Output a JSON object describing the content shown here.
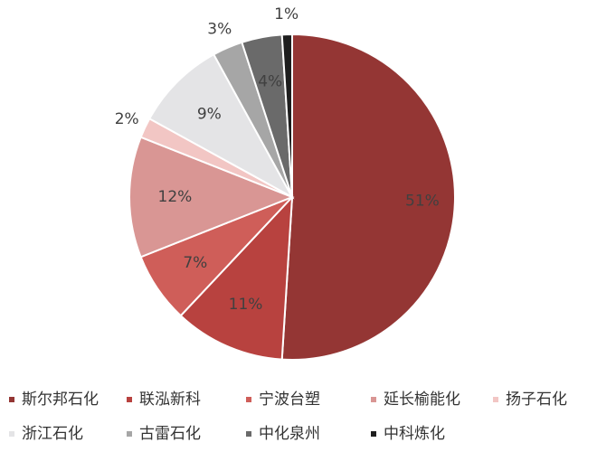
{
  "chart_data": {
    "type": "pie",
    "categories": [
      "斯尔邦石化",
      "联泓新科",
      "宁波台塑",
      "延长榆能化",
      "扬子石化",
      "浙江石化",
      "古雷石化",
      "中化泉州",
      "中科炼化"
    ],
    "values": [
      51,
      11,
      7,
      12,
      2,
      9,
      3,
      4,
      1
    ],
    "value_labels": [
      "51%",
      "11%",
      "7%",
      "12%",
      "2%",
      "9%",
      "3%",
      "4%",
      "1%"
    ],
    "colors": [
      "#943634",
      "#b8423f",
      "#cf5e59",
      "#d99694",
      "#f2c6c4",
      "#e4e4e6",
      "#a6a6a6",
      "#6a6a6a",
      "#1e1e1e"
    ]
  }
}
